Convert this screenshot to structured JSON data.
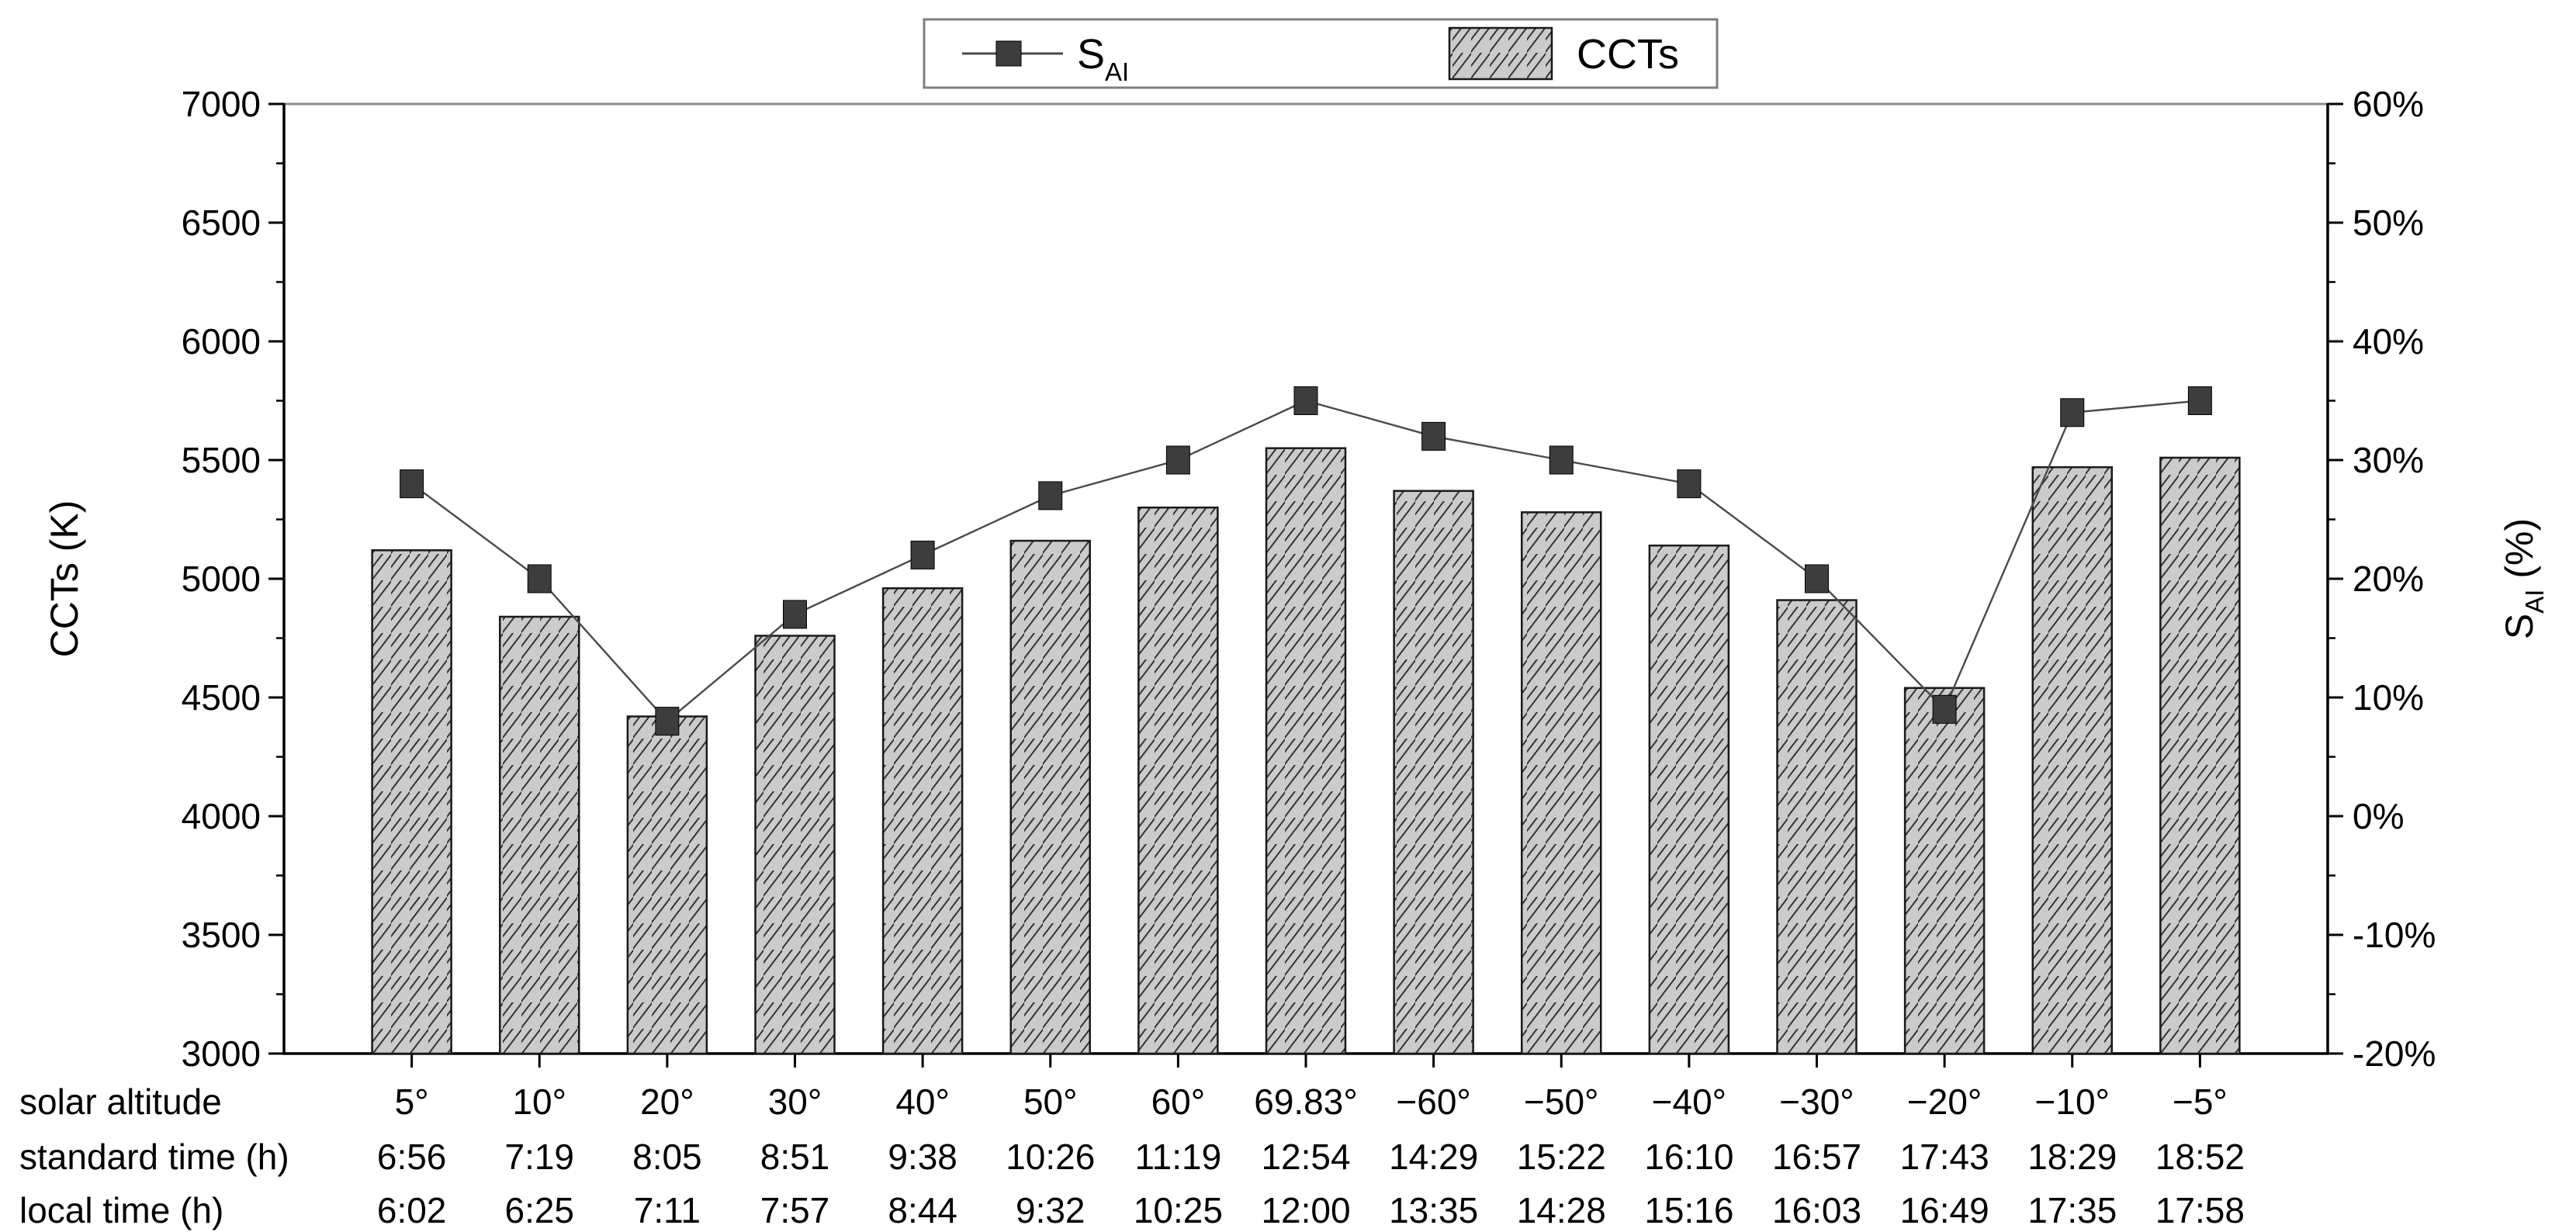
{
  "chart_data": {
    "type": "bar+line",
    "title": "",
    "categories": [
      "5°",
      "10°",
      "20°",
      "30°",
      "40°",
      "50°",
      "60°",
      "69.83°",
      "−60°",
      "−50°",
      "−40°",
      "−30°",
      "−20°",
      "−10°",
      "−5°"
    ],
    "x_header_rows": [
      {
        "label": "solar altitude",
        "values": [
          "5°",
          "10°",
          "20°",
          "30°",
          "40°",
          "50°",
          "60°",
          "69.83°",
          "−60°",
          "−50°",
          "−40°",
          "−30°",
          "−20°",
          "−10°",
          "−5°"
        ]
      },
      {
        "label": "standard time (h)",
        "values": [
          "6:56",
          "7:19",
          "8:05",
          "8:51",
          "9:38",
          "10:26",
          "11:19",
          "12:54",
          "14:29",
          "15:22",
          "16:10",
          "16:57",
          "17:43",
          "18:29",
          "18:52"
        ]
      },
      {
        "label": "local time (h)",
        "values": [
          "6:02",
          "6:25",
          "7:11",
          "7:57",
          "8:44",
          "9:32",
          "10:25",
          "12:00",
          "13:35",
          "14:28",
          "15:16",
          "16:03",
          "16:49",
          "17:35",
          "17:58"
        ]
      }
    ],
    "series": [
      {
        "name": "CCTs",
        "type": "bar",
        "axis": "left",
        "unit": "K",
        "values": [
          5120,
          4840,
          4420,
          4760,
          4960,
          5160,
          5300,
          5550,
          5370,
          5280,
          5140,
          4910,
          4540,
          5470,
          5510
        ]
      },
      {
        "name": "SAI",
        "label_main": "S",
        "label_sub": "AI",
        "type": "line+marker",
        "axis": "right",
        "unit": "%",
        "values": [
          28,
          20,
          8,
          17,
          22,
          27,
          30,
          35,
          32,
          30,
          28,
          20,
          9,
          34,
          35
        ]
      }
    ],
    "left_axis": {
      "title": "CCTs (K)",
      "min": 3000,
      "max": 7000,
      "minor_step": 250,
      "major_ticks": [
        {
          "v": 7000,
          "label": "7000"
        },
        {
          "v": 6500,
          "label": "6500"
        },
        {
          "v": 6000,
          "label": "6000"
        },
        {
          "v": 5500,
          "label": "5500"
        },
        {
          "v": 5000,
          "label": "5000"
        },
        {
          "v": 4500,
          "label": "4500"
        },
        {
          "v": 4000,
          "label": "4000"
        },
        {
          "v": 3500,
          "label": "3500"
        },
        {
          "v": 3000,
          "label": "3000"
        }
      ]
    },
    "right_axis": {
      "title_main": "S",
      "title_sub": "AI",
      "title_suffix": " (%)",
      "min": -20,
      "max": 60,
      "minor_step": 5,
      "major_ticks": [
        {
          "v": 60,
          "label": "60%"
        },
        {
          "v": 50,
          "label": "50%"
        },
        {
          "v": 40,
          "label": "40%"
        },
        {
          "v": 30,
          "label": "30%"
        },
        {
          "v": 20,
          "label": "20%"
        },
        {
          "v": 10,
          "label": "10%"
        },
        {
          "v": 0,
          "label": "0%"
        },
        {
          "v": -10,
          "label": "-10%"
        },
        {
          "v": -20,
          "label": "-20%"
        }
      ]
    },
    "legend": {
      "entry_line_main": "S",
      "entry_line_sub": "AI",
      "entry_bar": "CCTs"
    },
    "layout_hints": {
      "legend_position": "top-center",
      "grid": false
    },
    "colors": {
      "background": "#ffffff",
      "bar_fill": "#cbcbcb",
      "bar_edge": "#1a1a1a",
      "hatch_line": "#333333",
      "marker": "#3d3d3d",
      "line": "#4a4a4a",
      "axis": "#000000",
      "frame_top": "#8c8c8c",
      "legend_border": "#7f7f7f"
    }
  }
}
